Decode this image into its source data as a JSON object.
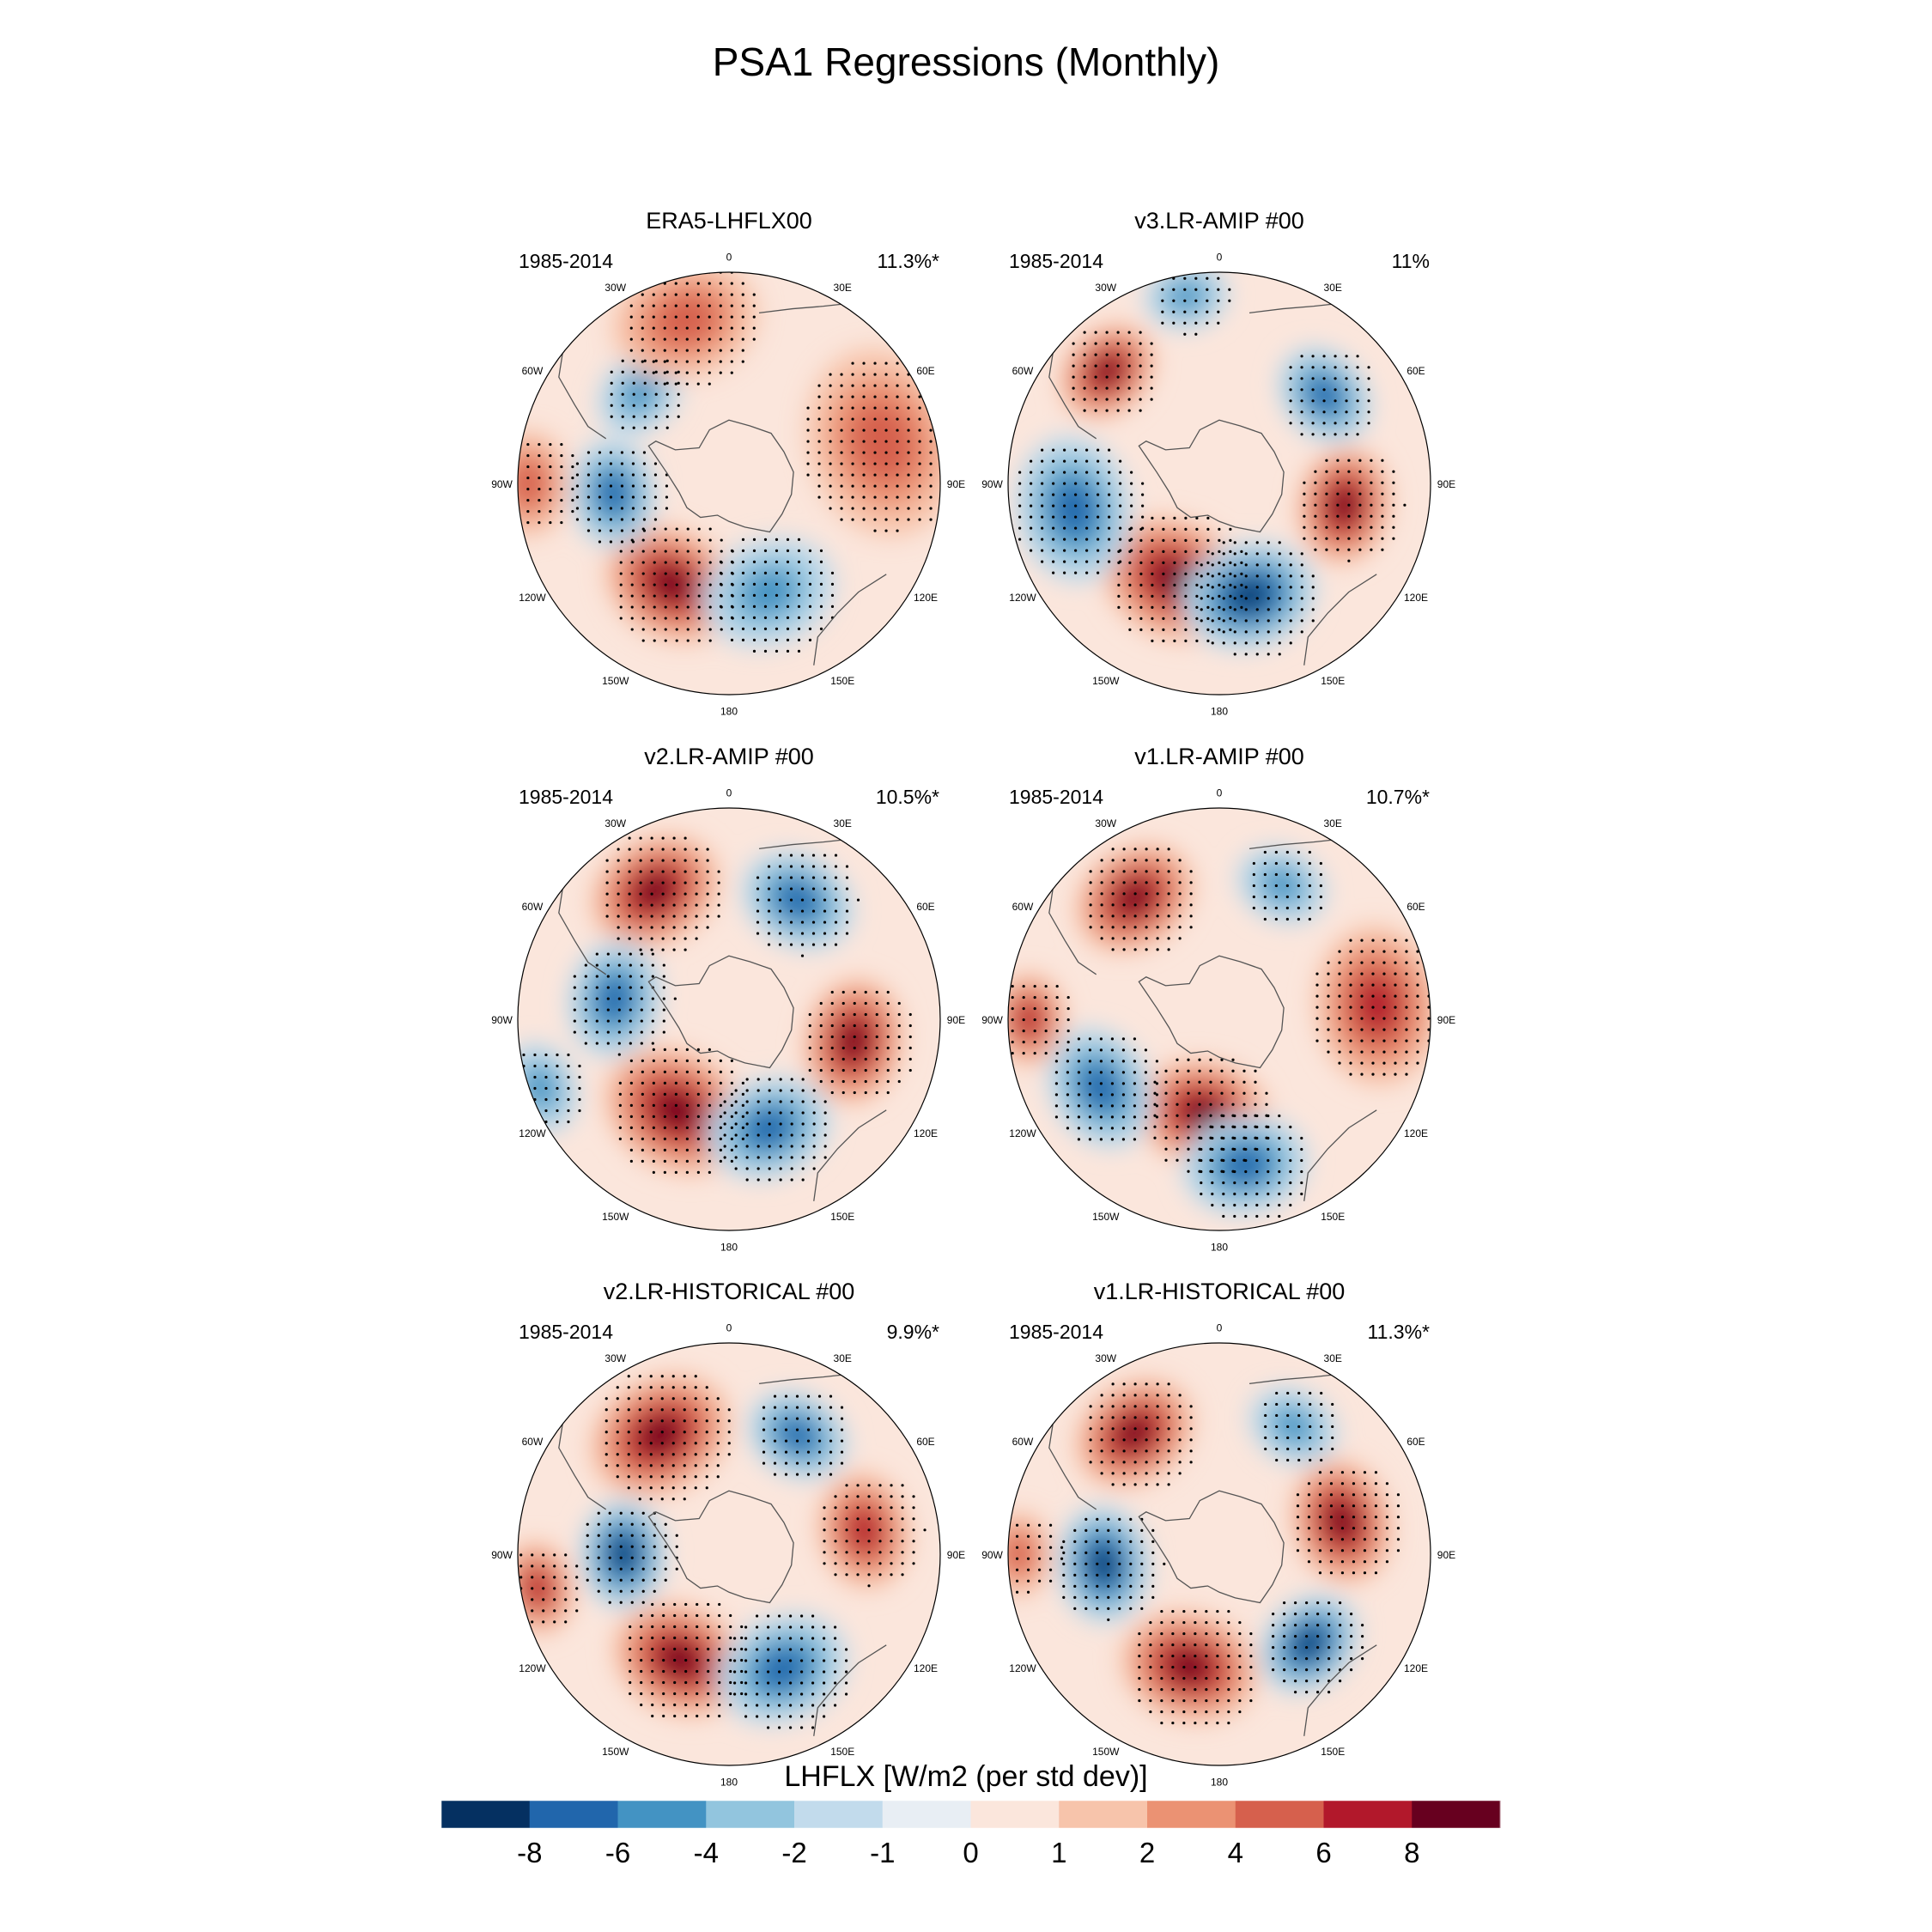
{
  "figure": {
    "title": "PSA1 Regressions (Monthly)"
  },
  "panels": [
    {
      "title": "ERA5-LHFLX00",
      "period": "1985-2014",
      "variance": "11.3%*",
      "anomalies": [
        {
          "lon": -150,
          "r": 0.55,
          "value": 9,
          "size": 0.33
        },
        {
          "lon": -95,
          "r": 0.55,
          "value": -6,
          "size": 0.26
        },
        {
          "lon": -45,
          "r": 0.6,
          "value": -5,
          "size": 0.22
        },
        {
          "lon": -15,
          "r": 0.8,
          "value": 5,
          "size": 0.35
        },
        {
          "lon": 75,
          "r": 0.75,
          "value": 5,
          "size": 0.45
        },
        {
          "lon": 160,
          "r": 0.55,
          "value": -5,
          "size": 0.32
        },
        {
          "lon": -90,
          "r": 0.95,
          "value": 5,
          "size": 0.25
        }
      ]
    },
    {
      "title": "v3.LR-AMIP  #00",
      "period": "1985-2014",
      "variance": "11%",
      "anomalies": [
        {
          "lon": -155,
          "r": 0.5,
          "value": 9,
          "size": 0.36
        },
        {
          "lon": 165,
          "r": 0.55,
          "value": -9,
          "size": 0.32
        },
        {
          "lon": 100,
          "r": 0.6,
          "value": 9,
          "size": 0.28
        },
        {
          "lon": 50,
          "r": 0.65,
          "value": -6,
          "size": 0.25
        },
        {
          "lon": -45,
          "r": 0.75,
          "value": 9,
          "size": 0.25
        },
        {
          "lon": -100,
          "r": 0.7,
          "value": -7,
          "size": 0.35
        },
        {
          "lon": -10,
          "r": 0.9,
          "value": -5,
          "size": 0.2
        }
      ]
    },
    {
      "title": "v2.LR-AMIP  #00",
      "period": "1985-2014",
      "variance": "10.5%*",
      "anomalies": [
        {
          "lon": -150,
          "r": 0.5,
          "value": 9,
          "size": 0.36
        },
        {
          "lon": -30,
          "r": 0.7,
          "value": 9,
          "size": 0.32
        },
        {
          "lon": 30,
          "r": 0.65,
          "value": -6,
          "size": 0.28
        },
        {
          "lon": 100,
          "r": 0.6,
          "value": 9,
          "size": 0.3
        },
        {
          "lon": 160,
          "r": 0.55,
          "value": -7,
          "size": 0.3
        },
        {
          "lon": -80,
          "r": 0.55,
          "value": -7,
          "size": 0.28
        },
        {
          "lon": -110,
          "r": 0.95,
          "value": -5,
          "size": 0.22
        }
      ]
    },
    {
      "title": "v1.LR-AMIP  #00",
      "period": "1985-2014",
      "variance": "10.7%*",
      "anomalies": [
        {
          "lon": -170,
          "r": 0.45,
          "value": 9,
          "size": 0.32
        },
        {
          "lon": -120,
          "r": 0.65,
          "value": -7,
          "size": 0.3
        },
        {
          "lon": 170,
          "r": 0.7,
          "value": -7,
          "size": 0.3
        },
        {
          "lon": -35,
          "r": 0.7,
          "value": 9,
          "size": 0.3
        },
        {
          "lon": 25,
          "r": 0.7,
          "value": -5,
          "size": 0.22
        },
        {
          "lon": 85,
          "r": 0.75,
          "value": 7,
          "size": 0.38
        },
        {
          "lon": -90,
          "r": 0.9,
          "value": 6,
          "size": 0.22
        }
      ]
    },
    {
      "title": "v2.LR-HISTORICAL  #00",
      "period": "1985-2014",
      "variance": "9.9%*",
      "anomalies": [
        {
          "lon": -155,
          "r": 0.55,
          "value": 9,
          "size": 0.33
        },
        {
          "lon": -90,
          "r": 0.5,
          "value": -8,
          "size": 0.26
        },
        {
          "lon": -30,
          "r": 0.65,
          "value": 8,
          "size": 0.35
        },
        {
          "lon": 30,
          "r": 0.65,
          "value": -6,
          "size": 0.25
        },
        {
          "lon": 80,
          "r": 0.65,
          "value": 6,
          "size": 0.28
        },
        {
          "lon": 155,
          "r": 0.6,
          "value": -7,
          "size": 0.32
        },
        {
          "lon": -100,
          "r": 0.92,
          "value": 6,
          "size": 0.22
        }
      ]
    },
    {
      "title": "v1.LR-HISTORICAL  #00",
      "period": "1985-2014",
      "variance": "11.3%*",
      "anomalies": [
        {
          "lon": -165,
          "r": 0.55,
          "value": 9,
          "size": 0.33
        },
        {
          "lon": -95,
          "r": 0.55,
          "value": -9,
          "size": 0.28
        },
        {
          "lon": -35,
          "r": 0.7,
          "value": 9,
          "size": 0.3
        },
        {
          "lon": 75,
          "r": 0.6,
          "value": 9,
          "size": 0.3
        },
        {
          "lon": 135,
          "r": 0.6,
          "value": -9,
          "size": 0.26
        },
        {
          "lon": 30,
          "r": 0.7,
          "value": -5,
          "size": 0.22
        },
        {
          "lon": -90,
          "r": 0.95,
          "value": 5,
          "size": 0.2
        }
      ]
    }
  ],
  "longitude_labels": [
    {
      "lon": 0,
      "text": "0"
    },
    {
      "lon": 30,
      "text": "30E"
    },
    {
      "lon": 60,
      "text": "60E"
    },
    {
      "lon": 90,
      "text": "90E"
    },
    {
      "lon": 120,
      "text": "120E"
    },
    {
      "lon": 150,
      "text": "150E"
    },
    {
      "lon": 180,
      "text": "180"
    },
    {
      "lon": -150,
      "text": "150W"
    },
    {
      "lon": -120,
      "text": "120W"
    },
    {
      "lon": -90,
      "text": "90W"
    },
    {
      "lon": -60,
      "text": "60W"
    },
    {
      "lon": -30,
      "text": "30W"
    }
  ],
  "colorbar": {
    "title": "LHFLX [W/m2 (per std dev)]",
    "levels": [
      -8,
      -6,
      -4,
      -2,
      -1,
      0,
      1,
      2,
      4,
      6,
      8
    ],
    "tick_labels": [
      "-8",
      "-6",
      "-4",
      "-2",
      "-1",
      "0",
      "1",
      "2",
      "4",
      "6",
      "8"
    ],
    "colors": [
      "#053061",
      "#2166ac",
      "#4393c3",
      "#92c5de",
      "#c2dbec",
      "#e8eef4",
      "#fbe6dc",
      "#f7c4ab",
      "#eb9273",
      "#d6604d",
      "#b2182b",
      "#67001f"
    ]
  },
  "colors": {
    "coastline": "#555555",
    "land": "#ffffff",
    "stipple": "#000000"
  }
}
